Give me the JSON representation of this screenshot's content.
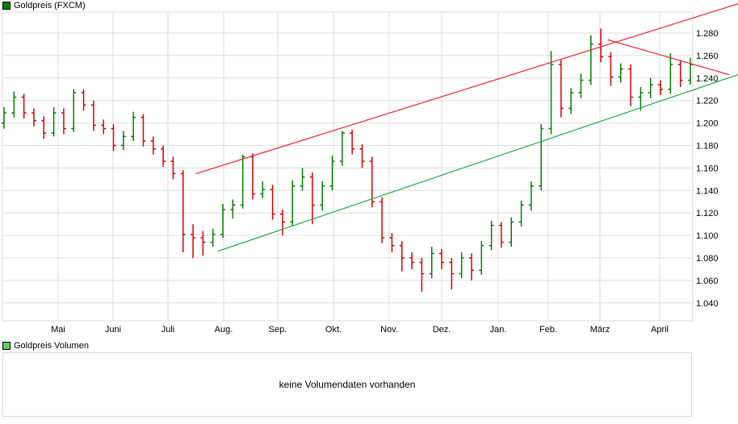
{
  "price_legend": {
    "label": "Goldpreis (FXCM)",
    "color": "#008000"
  },
  "volume_legend": {
    "label": "Goldpreis Volumen",
    "color": "#66cc66"
  },
  "volume_message": "keine Volumendaten vorhanden",
  "chart_data": {
    "type": "ohlc",
    "title": "Goldpreis (FXCM)",
    "up_color": "#008000",
    "down_color": "#dd0000",
    "grid": true,
    "ylim": [
      1.024,
      1.298
    ],
    "yticks": [
      "1.040",
      "1.060",
      "1.080",
      "1.100",
      "1.120",
      "1.140",
      "1.160",
      "1.180",
      "1.200",
      "1.220",
      "1.240",
      "1.260",
      "1.280"
    ],
    "xticks": [
      "Mai",
      "Juni",
      "Juli",
      "Aug.",
      "Sep.",
      "Okt.",
      "Nov.",
      "Dez.",
      "Jan.",
      "Feb.",
      "März",
      "April"
    ],
    "ohlc": [
      [
        1.2,
        1.214,
        1.195,
        1.209
      ],
      [
        1.209,
        1.228,
        1.205,
        1.223
      ],
      [
        1.223,
        1.226,
        1.204,
        1.209
      ],
      [
        1.209,
        1.213,
        1.197,
        1.202
      ],
      [
        1.202,
        1.206,
        1.186,
        1.191
      ],
      [
        1.191,
        1.214,
        1.188,
        1.209
      ],
      [
        1.209,
        1.213,
        1.19,
        1.195
      ],
      [
        1.195,
        1.23,
        1.192,
        1.227
      ],
      [
        1.227,
        1.23,
        1.211,
        1.216
      ],
      [
        1.216,
        1.22,
        1.193,
        1.198
      ],
      [
        1.198,
        1.203,
        1.19,
        1.195
      ],
      [
        1.195,
        1.199,
        1.175,
        1.18
      ],
      [
        1.18,
        1.193,
        1.176,
        1.188
      ],
      [
        1.188,
        1.21,
        1.184,
        1.205
      ],
      [
        1.205,
        1.208,
        1.179,
        1.184
      ],
      [
        1.184,
        1.188,
        1.172,
        1.177
      ],
      [
        1.177,
        1.18,
        1.161,
        1.166
      ],
      [
        1.166,
        1.17,
        1.15,
        1.155
      ],
      [
        1.155,
        1.158,
        1.085,
        1.101
      ],
      [
        1.101,
        1.11,
        1.08,
        1.098
      ],
      [
        1.098,
        1.104,
        1.082,
        1.094
      ],
      [
        1.094,
        1.106,
        1.09,
        1.101
      ],
      [
        1.101,
        1.128,
        1.098,
        1.123
      ],
      [
        1.123,
        1.132,
        1.115,
        1.127
      ],
      [
        1.127,
        1.172,
        1.124,
        1.17
      ],
      [
        1.17,
        1.173,
        1.132,
        1.137
      ],
      [
        1.137,
        1.148,
        1.133,
        1.141
      ],
      [
        1.141,
        1.145,
        1.114,
        1.119
      ],
      [
        1.119,
        1.123,
        1.1,
        1.112
      ],
      [
        1.112,
        1.149,
        1.109,
        1.144
      ],
      [
        1.144,
        1.16,
        1.14,
        1.152
      ],
      [
        1.152,
        1.156,
        1.11,
        1.127
      ],
      [
        1.127,
        1.148,
        1.122,
        1.144
      ],
      [
        1.144,
        1.171,
        1.14,
        1.166
      ],
      [
        1.166,
        1.193,
        1.162,
        1.191
      ],
      [
        1.191,
        1.194,
        1.172,
        1.177
      ],
      [
        1.177,
        1.181,
        1.16,
        1.166
      ],
      [
        1.166,
        1.17,
        1.125,
        1.13
      ],
      [
        1.13,
        1.134,
        1.093,
        1.098
      ],
      [
        1.098,
        1.102,
        1.085,
        1.091
      ],
      [
        1.091,
        1.095,
        1.068,
        1.08
      ],
      [
        1.08,
        1.085,
        1.07,
        1.076
      ],
      [
        1.076,
        1.08,
        1.05,
        1.066
      ],
      [
        1.066,
        1.09,
        1.062,
        1.084
      ],
      [
        1.084,
        1.088,
        1.07,
        1.076
      ],
      [
        1.076,
        1.08,
        1.052,
        1.066
      ],
      [
        1.066,
        1.085,
        1.062,
        1.08
      ],
      [
        1.08,
        1.084,
        1.06,
        1.069
      ],
      [
        1.069,
        1.095,
        1.065,
        1.091
      ],
      [
        1.091,
        1.113,
        1.087,
        1.109
      ],
      [
        1.109,
        1.112,
        1.089,
        1.094
      ],
      [
        1.094,
        1.116,
        1.09,
        1.112
      ],
      [
        1.112,
        1.131,
        1.108,
        1.127
      ],
      [
        1.127,
        1.148,
        1.122,
        1.144
      ],
      [
        1.144,
        1.199,
        1.14,
        1.195
      ],
      [
        1.195,
        1.264,
        1.19,
        1.252
      ],
      [
        1.252,
        1.256,
        1.205,
        1.213
      ],
      [
        1.213,
        1.231,
        1.208,
        1.227
      ],
      [
        1.227,
        1.244,
        1.222,
        1.238
      ],
      [
        1.238,
        1.278,
        1.234,
        1.27
      ],
      [
        1.27,
        1.284,
        1.254,
        1.259
      ],
      [
        1.259,
        1.263,
        1.233,
        1.241
      ],
      [
        1.241,
        1.253,
        1.236,
        1.248
      ],
      [
        1.248,
        1.252,
        1.215,
        1.223
      ],
      [
        1.223,
        1.232,
        1.211,
        1.227
      ],
      [
        1.227,
        1.24,
        1.222,
        1.234
      ],
      [
        1.234,
        1.238,
        1.225,
        1.23
      ],
      [
        1.23,
        1.262,
        1.226,
        1.252
      ],
      [
        1.252,
        1.256,
        1.232,
        1.238
      ],
      [
        1.238,
        1.258,
        1.234,
        1.252
      ]
    ],
    "trendlines": [
      {
        "color": "#ee2233",
        "from": {
          "bar": 19.3,
          "price": 1.155
        },
        "to": {
          "bar": 73.8,
          "price": 1.306
        }
      },
      {
        "color": "#22aa44",
        "from": {
          "bar": 21.5,
          "price": 1.086
        },
        "to": {
          "bar": 73.8,
          "price": 1.243
        }
      },
      {
        "color": "#ee2233",
        "from": {
          "bar": 60.7,
          "price": 1.274
        },
        "to": {
          "bar": 72.9,
          "price": 1.243
        }
      }
    ]
  }
}
